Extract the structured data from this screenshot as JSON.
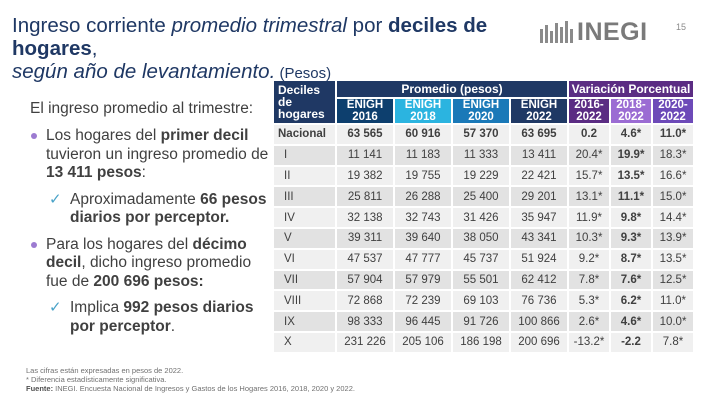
{
  "title": {
    "part1": "Ingreso corriente ",
    "part2": "promedio trimestral",
    "part3": " por ",
    "part4": "deciles de hogares",
    "part5": ",",
    "part6": "según año de levantamiento.",
    "part7": " (Pesos)"
  },
  "logo": {
    "text": "INEGI"
  },
  "page_number": "15",
  "left": {
    "intro": "El ingreso promedio al trimestre:",
    "bullet1": {
      "t1": "Los hogares del ",
      "t2": "primer decil",
      "t3": " tuvieron un ingreso promedio de ",
      "t4": "13 411 pesos",
      "t5": ":"
    },
    "sub1": {
      "t1": "Aproximadamente ",
      "t2": "66 pesos diarios por perceptor."
    },
    "bullet2": {
      "t1": "Para los hogares del ",
      "t2": "décimo decil",
      "t3": ", dicho ingreso promedio fue de ",
      "t4": "200 696 pesos:"
    },
    "sub2": {
      "t1": "Implica ",
      "t2": "992 pesos diarios por perceptor",
      "t3": "."
    }
  },
  "table": {
    "header_decil": "Deciles de hogares",
    "header_promedio": "Promedio (pesos)",
    "header_variacion": "Variación Porcentual",
    "col_enigh": [
      "ENIGH 2016",
      "ENIGH 2018",
      "ENIGH 2020",
      "ENIGH 2022"
    ],
    "col_var": [
      "2016-2022",
      "2018-2022",
      "2020-2022"
    ],
    "rows": [
      {
        "label": "Nacional",
        "v": [
          "63 565",
          "60 916",
          "57 370",
          "63 695"
        ],
        "p": [
          "0.2",
          "4.6*",
          "11.0*"
        ]
      },
      {
        "label": "I",
        "v": [
          "11 141",
          "11 183",
          "11 333",
          "13 411"
        ],
        "p": [
          "20.4*",
          "19.9*",
          "18.3*"
        ]
      },
      {
        "label": "II",
        "v": [
          "19 382",
          "19 755",
          "19 229",
          "22 421"
        ],
        "p": [
          "15.7*",
          "13.5*",
          "16.6*"
        ]
      },
      {
        "label": "III",
        "v": [
          "25 811",
          "26 288",
          "25 400",
          "29 201"
        ],
        "p": [
          "13.1*",
          "11.1*",
          "15.0*"
        ]
      },
      {
        "label": "IV",
        "v": [
          "32 138",
          "32 743",
          "31 426",
          "35 947"
        ],
        "p": [
          "11.9*",
          "9.8*",
          "14.4*"
        ]
      },
      {
        "label": "V",
        "v": [
          "39 311",
          "39 640",
          "38 050",
          "43 341"
        ],
        "p": [
          "10.3*",
          "9.3*",
          "13.9*"
        ]
      },
      {
        "label": "VI",
        "v": [
          "47 537",
          "47 777",
          "45 737",
          "51 924"
        ],
        "p": [
          "9.2*",
          "8.7*",
          "13.5*"
        ]
      },
      {
        "label": "VII",
        "v": [
          "57 904",
          "57 979",
          "55 501",
          "62 412"
        ],
        "p": [
          "7.8*",
          "7.6*",
          "12.5*"
        ]
      },
      {
        "label": "VIII",
        "v": [
          "72 868",
          "72 239",
          "69 103",
          "76 736"
        ],
        "p": [
          "5.3*",
          "6.2*",
          "11.0*"
        ]
      },
      {
        "label": "IX",
        "v": [
          "98 333",
          "96 445",
          "91 726",
          "100 866"
        ],
        "p": [
          "2.6*",
          "4.6*",
          "10.0*"
        ]
      },
      {
        "label": "X",
        "v": [
          "231 226",
          "205 106",
          "186 198",
          "200 696"
        ],
        "p": [
          "-13.2*",
          "-2.2",
          "7.8*"
        ]
      }
    ]
  },
  "footnotes": {
    "line1": "Las cifras están expresadas en pesos de 2022.",
    "line2": "* Diferencia estadísticamente significativa.",
    "line3_label": "Fuente:",
    "line3_text": " INEGI. Encuesta Nacional de Ingresos y Gastos de los Hogares 2016, 2018, 2020 y 2022."
  },
  "colors": {
    "title": "#1f3864",
    "promedio_header": "#1f3864",
    "variacion_header": "#5b2c83",
    "enigh_2018": "#2bb4e0",
    "enigh_2020": "#1a79b8",
    "var_2018_2022": "#9b6cd3",
    "var_2020_2022": "#6d4ab8",
    "bullet": "#9c7bd1",
    "check": "#4aa3c8"
  }
}
